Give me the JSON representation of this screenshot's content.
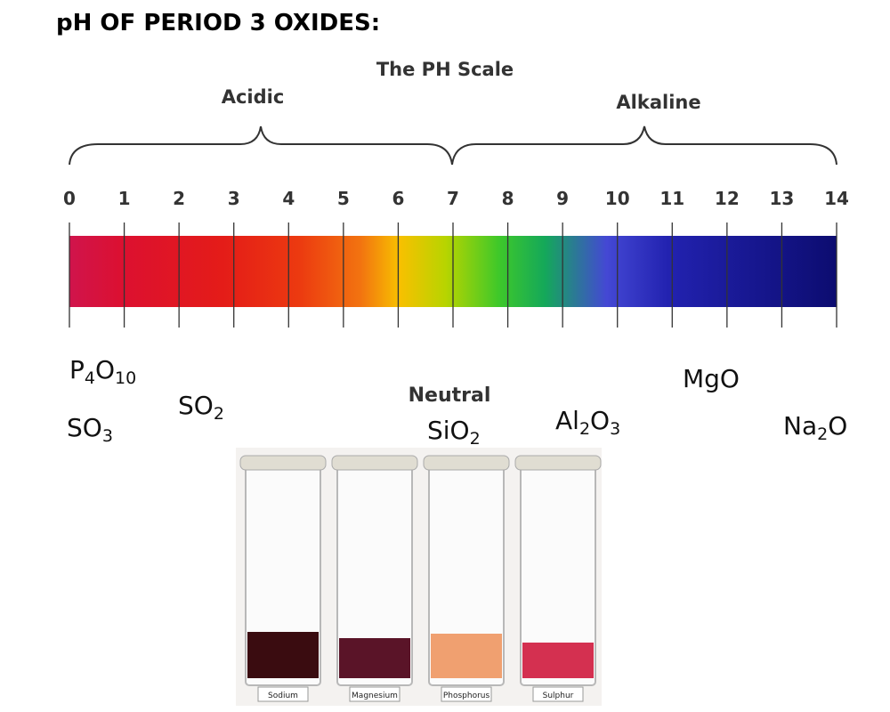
{
  "header": {
    "title": "pH OF PERIOD 3 OXIDES:"
  },
  "scale": {
    "title": "The PH Scale",
    "acidic": "Acidic",
    "alkaline": "Alkaline",
    "neutral": "Neutral",
    "ticks": [
      0,
      1,
      2,
      3,
      4,
      5,
      6,
      7,
      8,
      9,
      10,
      11,
      12,
      13,
      14
    ]
  },
  "oxides": [
    "P4O10",
    "SO3",
    "SO2",
    "SiO2",
    "Al2O3",
    "MgO",
    "Na2O"
  ],
  "jars": [
    "Sodium",
    "Magnesium",
    "Phosphorus",
    "Sulphur"
  ]
}
